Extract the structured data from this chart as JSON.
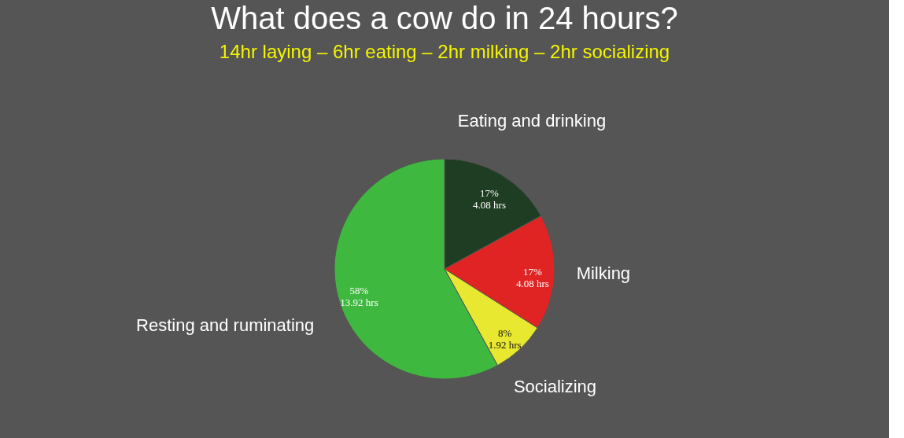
{
  "chart_data": {
    "type": "pie",
    "title": "What does a cow do in 24 hours?",
    "subtitle": "14hr laying – 6hr eating – 2hr milking – 2hr  socializing",
    "categories": [
      "Eating and drinking",
      "Milking",
      "Socializing",
      "Resting and ruminating"
    ],
    "values": [
      17,
      17,
      8,
      58
    ],
    "colors": [
      "#1f3d22",
      "#e02424",
      "#e8e830",
      "#3fb83f"
    ],
    "value_labels": [
      "17%\n4.08 hrs",
      "17%\n4.08 hrs",
      "8%\n1.92 hrs",
      "58%\n13.92 hrs"
    ],
    "legend": false
  }
}
